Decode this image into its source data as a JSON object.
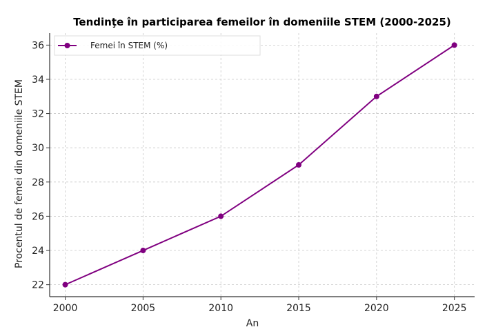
{
  "chart_data": {
    "type": "line",
    "title": "Tendinţe în participarea femeilor în domeniile STEM (2000-2025)",
    "xlabel": "An",
    "ylabel": "Procentul de femei din domeniile STEM",
    "x": [
      2000,
      2005,
      2010,
      2015,
      2020,
      2025
    ],
    "series": [
      {
        "name": "Femei în STEM (%)",
        "values": [
          22,
          24,
          26,
          29,
          33,
          36
        ],
        "color": "#800080"
      }
    ],
    "xlim": [
      1999,
      2026.3
    ],
    "ylim": [
      21.3,
      36.7
    ],
    "xticks": [
      2000,
      2005,
      2010,
      2015,
      2020,
      2025
    ],
    "yticks": [
      22,
      24,
      26,
      28,
      30,
      32,
      34,
      36
    ],
    "grid": true,
    "legend_position": "top-left"
  }
}
